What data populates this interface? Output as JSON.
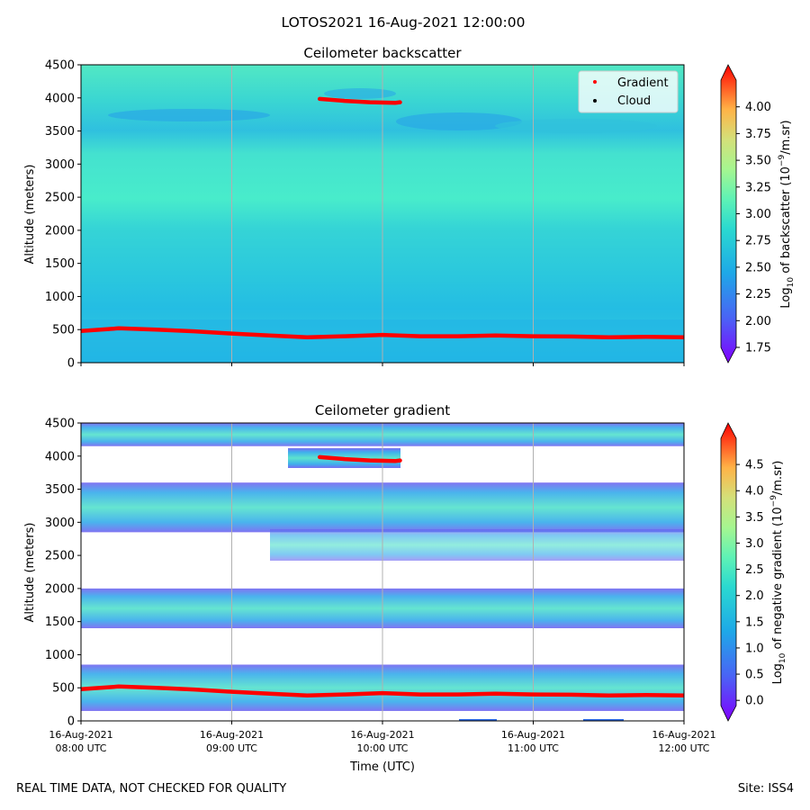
{
  "figure": {
    "suptitle": "LOTOS2021 16-Aug-2021 12:00:00",
    "footer_left": "REAL TIME DATA, NOT CHECKED FOR QUALITY",
    "footer_right": "Site: ISS4"
  },
  "chart_data": [
    {
      "type": "heatmap",
      "title": "Ceilometer backscatter",
      "ylabel": "Altitude (meters)",
      "xlabel": "",
      "ylim": [
        0,
        4500
      ],
      "yticks": [
        "0",
        "500",
        "1000",
        "1500",
        "2000",
        "2500",
        "3000",
        "3500",
        "4000",
        "4500"
      ],
      "x_range_utc": [
        "08:00",
        "12:00"
      ],
      "xgrid": true,
      "colorbar": {
        "label": "Log10 of backscatter (10^-9/m.sr)",
        "range": [
          1.75,
          4.25
        ],
        "ticks": [
          "1.75",
          "2.00",
          "2.25",
          "2.50",
          "2.75",
          "3.00",
          "3.25",
          "3.50",
          "3.75",
          "4.00"
        ],
        "colormap": "rainbow",
        "extend": "both"
      },
      "legend": {
        "placement": "top-right",
        "entries": [
          {
            "label": "Gradient",
            "color": "#ff0000"
          },
          {
            "label": "Cloud",
            "color": "#000000"
          }
        ]
      },
      "series": [
        {
          "name": "Gradient",
          "color": "#ff0000",
          "x": [
            "08:00",
            "08:15",
            "08:30",
            "08:45",
            "09:00",
            "09:15",
            "09:30",
            "09:45",
            "10:00",
            "10:15",
            "10:30",
            "10:45",
            "11:00",
            "11:15",
            "11:30",
            "11:45",
            "12:00"
          ],
          "y": [
            480,
            520,
            500,
            475,
            440,
            410,
            385,
            400,
            420,
            400,
            400,
            410,
            400,
            395,
            385,
            390,
            385
          ]
        },
        {
          "name": "Gradient",
          "color": "#ff0000",
          "x": [
            "09:35",
            "09:45",
            "09:55",
            "10:05",
            "10:07"
          ],
          "y": [
            3985,
            3955,
            3935,
            3925,
            3935
          ]
        }
      ]
    },
    {
      "type": "heatmap",
      "title": "Ceilometer gradient",
      "ylabel": "Altitude (meters)",
      "xlabel": "Time (UTC)",
      "ylim": [
        0,
        4500
      ],
      "yticks": [
        "0",
        "500",
        "1000",
        "1500",
        "2000",
        "2500",
        "3000",
        "3500",
        "4000",
        "4500"
      ],
      "xticks": [
        {
          "line1": "16-Aug-2021",
          "line2": "08:00 UTC"
        },
        {
          "line1": "16-Aug-2021",
          "line2": "09:00 UTC"
        },
        {
          "line1": "16-Aug-2021",
          "line2": "10:00 UTC"
        },
        {
          "line1": "16-Aug-2021",
          "line2": "11:00 UTC"
        },
        {
          "line1": "16-Aug-2021",
          "line2": "12:00 UTC"
        }
      ],
      "xgrid": true,
      "colorbar": {
        "label": "Log10 of negative gradient (10^-9/m.sr)",
        "range": [
          -0.1,
          5.0
        ],
        "ticks": [
          "0.0",
          "0.5",
          "1.0",
          "1.5",
          "2.0",
          "2.5",
          "3.0",
          "3.5",
          "4.0",
          "4.5"
        ],
        "colormap": "rainbow",
        "extend": "both"
      },
      "layers": [
        {
          "bottom": 4150,
          "top": 4500
        },
        {
          "bottom": 2850,
          "top": 3600
        },
        {
          "bottom": 1400,
          "top": 2000
        },
        {
          "bottom": 150,
          "top": 850
        }
      ],
      "series": [
        {
          "name": "Gradient",
          "color": "#ff0000",
          "x": [
            "08:00",
            "08:15",
            "08:30",
            "08:45",
            "09:00",
            "09:15",
            "09:30",
            "09:45",
            "10:00",
            "10:15",
            "10:30",
            "10:45",
            "11:00",
            "11:15",
            "11:30",
            "11:45",
            "12:00"
          ],
          "y": [
            480,
            520,
            500,
            475,
            440,
            410,
            385,
            400,
            420,
            400,
            400,
            410,
            400,
            395,
            385,
            390,
            385
          ]
        },
        {
          "name": "Gradient",
          "color": "#ff0000",
          "x": [
            "09:35",
            "09:45",
            "09:55",
            "10:05",
            "10:07"
          ],
          "y": [
            3985,
            3955,
            3935,
            3925,
            3935
          ]
        }
      ]
    }
  ]
}
